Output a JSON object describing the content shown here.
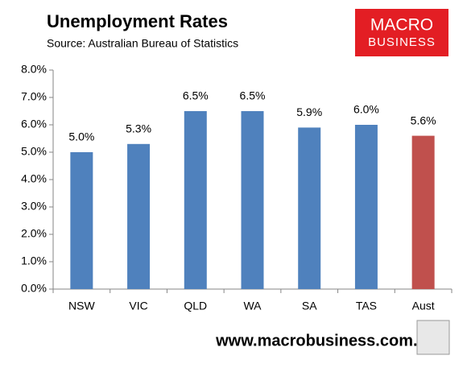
{
  "chart_data": {
    "type": "bar",
    "title": "Unemployment Rates",
    "subtitle": "Source: Australian Bureau of Statistics",
    "categories": [
      "NSW",
      "VIC",
      "QLD",
      "WA",
      "SA",
      "TAS",
      "Aust"
    ],
    "values": [
      5.0,
      5.3,
      6.5,
      6.5,
      5.9,
      6.0,
      5.6
    ],
    "value_labels": [
      "5.0%",
      "5.3%",
      "6.5%",
      "6.5%",
      "5.9%",
      "6.0%",
      "5.6%"
    ],
    "colors": [
      "#4f81bd",
      "#4f81bd",
      "#4f81bd",
      "#4f81bd",
      "#4f81bd",
      "#4f81bd",
      "#c0504d"
    ],
    "ylim": [
      0,
      8
    ],
    "yticks": [
      {
        "value": 0,
        "label": "0.0%"
      },
      {
        "value": 1,
        "label": "1.0%"
      },
      {
        "value": 2,
        "label": "2.0%"
      },
      {
        "value": 3,
        "label": "3.0%"
      },
      {
        "value": 4,
        "label": "4.0%"
      },
      {
        "value": 5,
        "label": "5.0%"
      },
      {
        "value": 6,
        "label": "6.0%"
      },
      {
        "value": 7,
        "label": "7.0%"
      },
      {
        "value": 8,
        "label": "8.0%"
      }
    ],
    "grid": false
  },
  "branding": {
    "logo_top": "MACRO",
    "logo_bottom": "BUSINESS",
    "website": "www.macrobusiness.com.au"
  }
}
